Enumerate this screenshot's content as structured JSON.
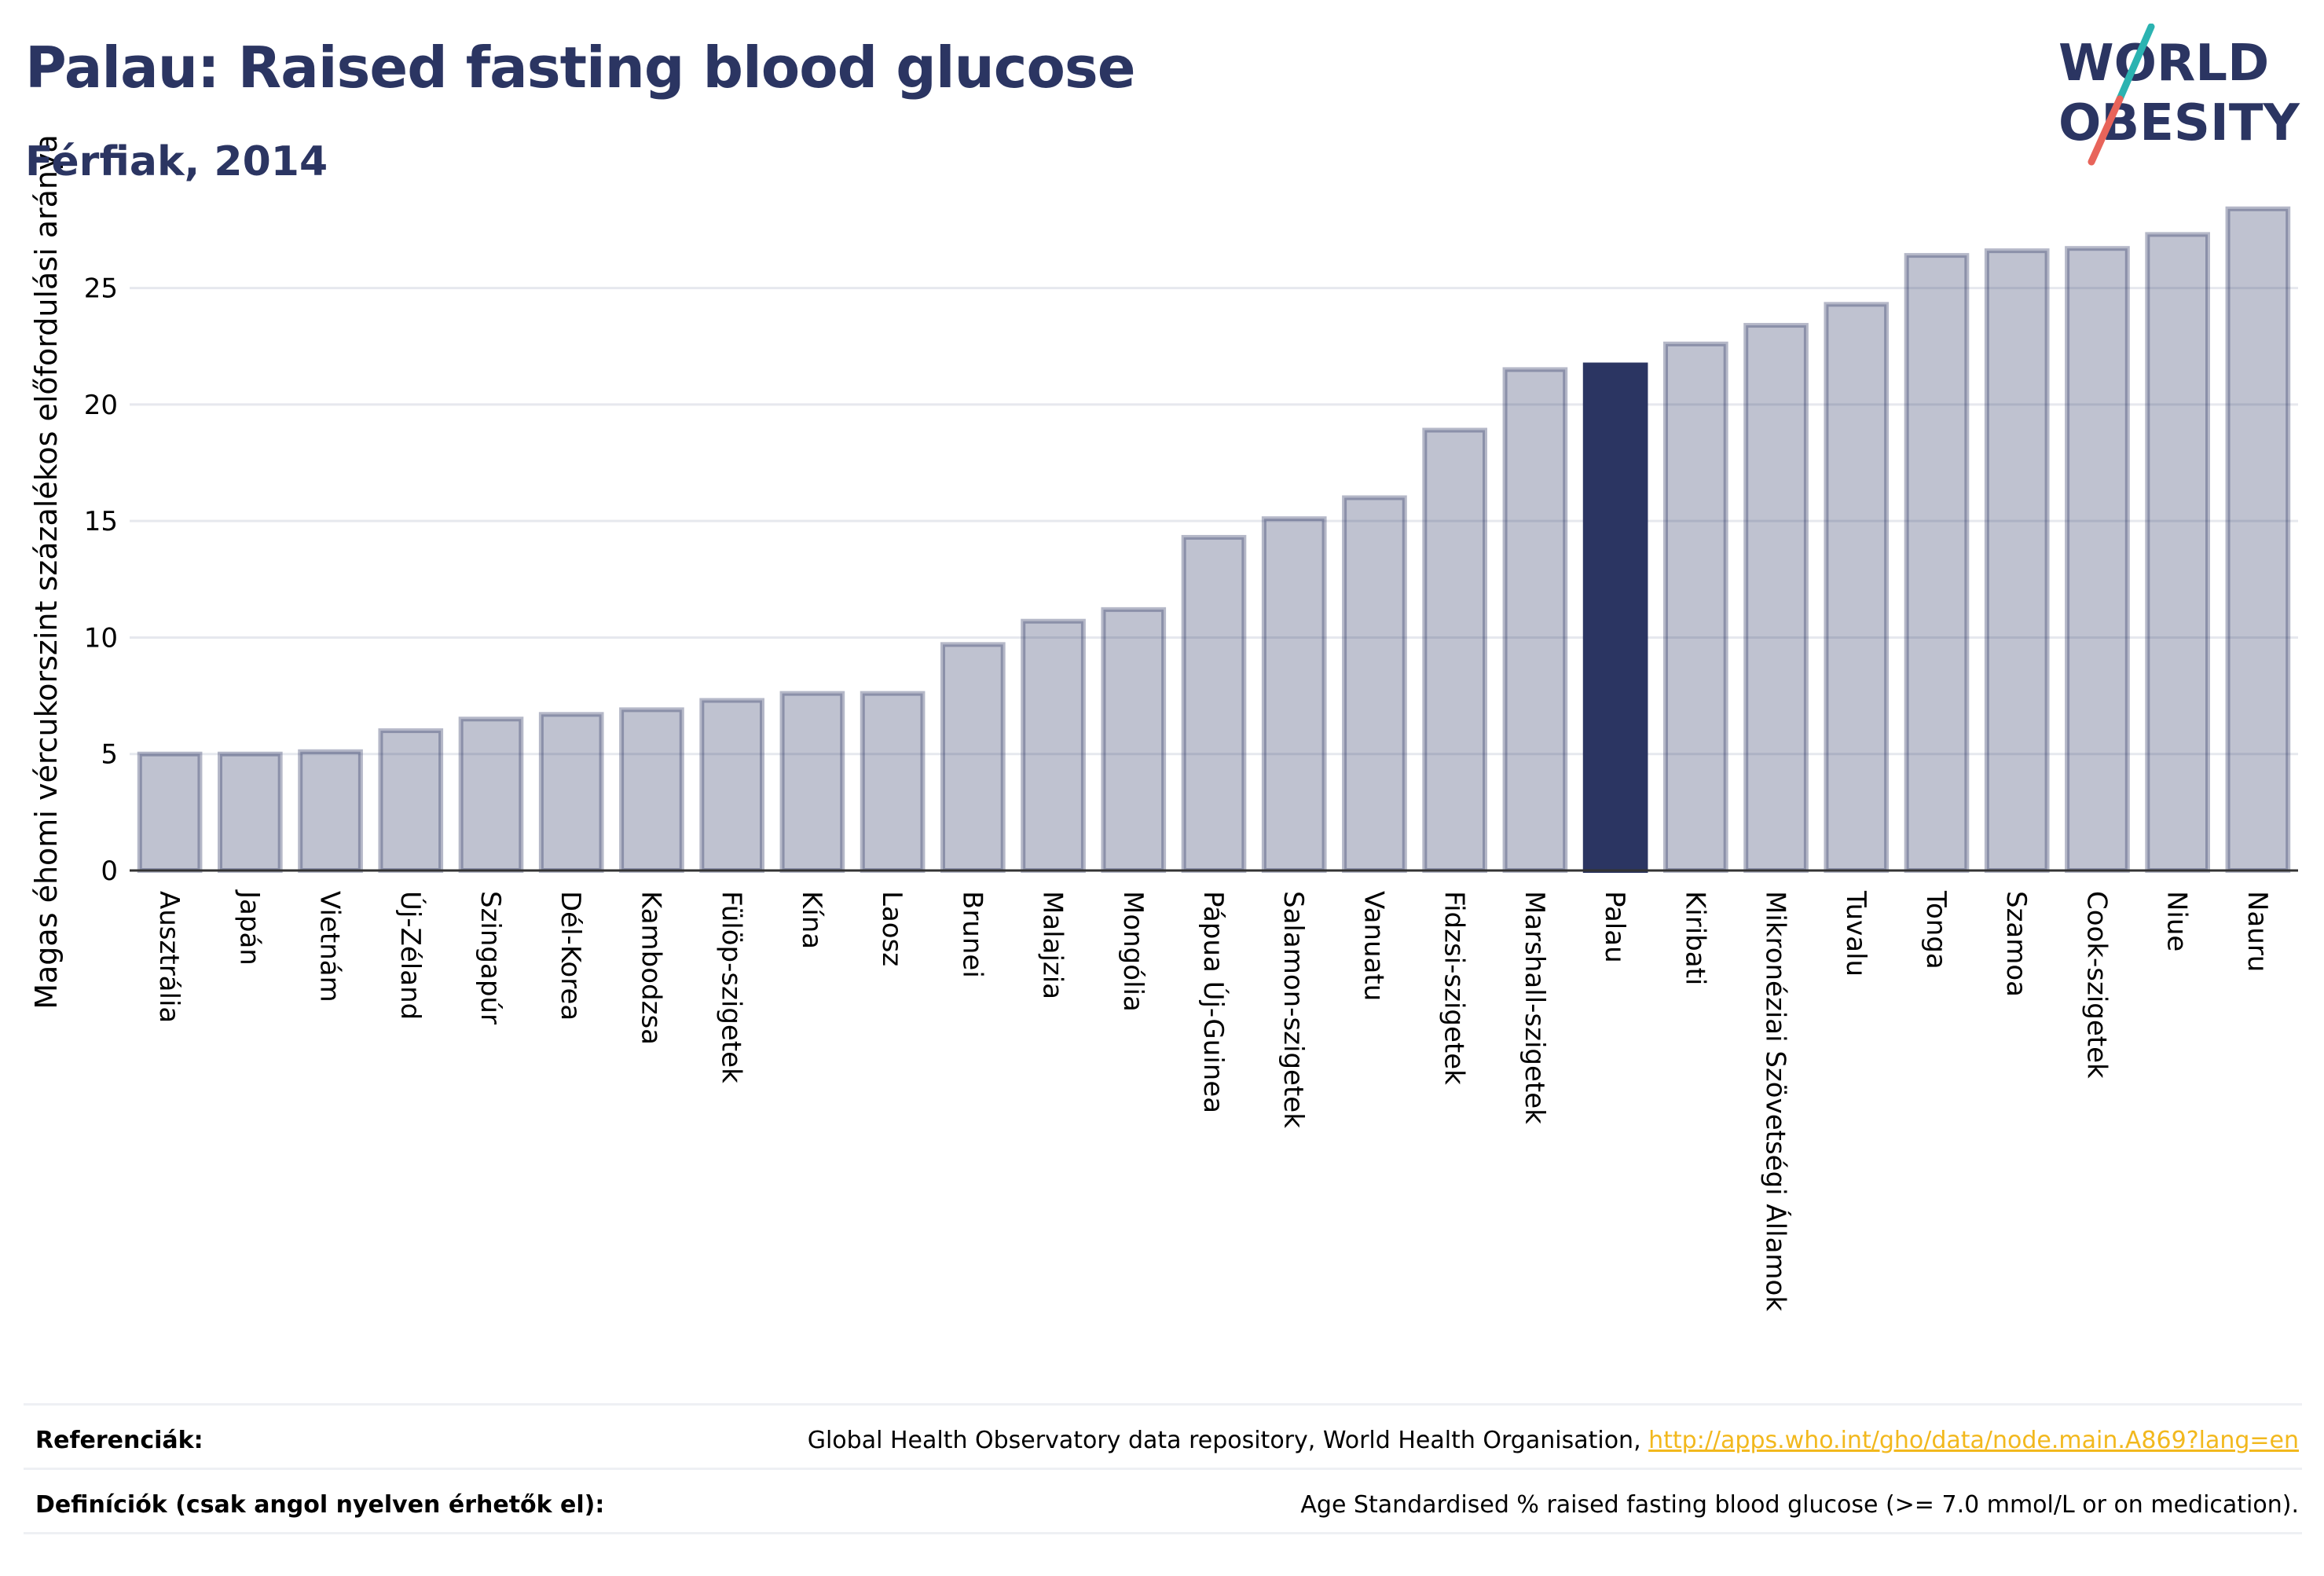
{
  "header": {
    "title": "Palau: Raised fasting blood glucose",
    "subtitle": "Férfiak, 2014"
  },
  "logo": {
    "line1": "WORLD",
    "line2": "OBESITY",
    "accent_colors": [
      "#2bb3b1",
      "#e8645a"
    ],
    "text_color": "#2b3562"
  },
  "chart_data": {
    "type": "bar",
    "title": "Palau: Raised fasting blood glucose",
    "subtitle": "Férfiak, 2014",
    "xlabel": "",
    "ylabel": "Magas éhomi vércukorszint százalékos előfordulási aránya",
    "ylim": [
      0,
      29
    ],
    "yticks": [
      0,
      5,
      10,
      15,
      20,
      25
    ],
    "grid": true,
    "highlight": "Palau",
    "colors": {
      "bar": "#2b3562",
      "bar_opacity": 0.3,
      "highlight": "#2b3562"
    },
    "categories": [
      "Ausztrália",
      "Japán",
      "Vietnám",
      "Új-Zéland",
      "Szingapúr",
      "Dél-Korea",
      "Kambodzsa",
      "Fülöp-szigetek",
      "Kína",
      "Laosz",
      "Brunei",
      "Malajzia",
      "Mongólia",
      "Pápua Új-Guinea",
      "Salamon-szigetek",
      "Vanuatu",
      "Fidzsi-szigetek",
      "Marshall-szigetek",
      "Palau",
      "Kiribati",
      "Mikronéziai Szövetségi Államok",
      "Tuvalu",
      "Tonga",
      "Szamoa",
      "Cook-szigetek",
      "Niue",
      "Nauru"
    ],
    "values": [
      5.0,
      5.0,
      5.1,
      6.0,
      6.5,
      6.7,
      6.9,
      7.3,
      7.6,
      7.6,
      9.7,
      10.7,
      11.2,
      14.3,
      15.1,
      16.0,
      18.9,
      21.5,
      21.7,
      22.6,
      23.4,
      24.3,
      26.4,
      26.6,
      26.7,
      27.3,
      28.4
    ]
  },
  "footer": {
    "references_label": "Referenciák:",
    "references_text": "Global Health Observatory data repository, World Health Organisation, ",
    "references_link": "http://apps.who.int/gho/data/node.main.A869?lang=en",
    "definitions_label": "Definíciók (csak angol nyelven érhetők el):",
    "definitions_text": "Age Standardised % raised fasting blood glucose (>= 7.0 mmol/L or on medication)."
  }
}
